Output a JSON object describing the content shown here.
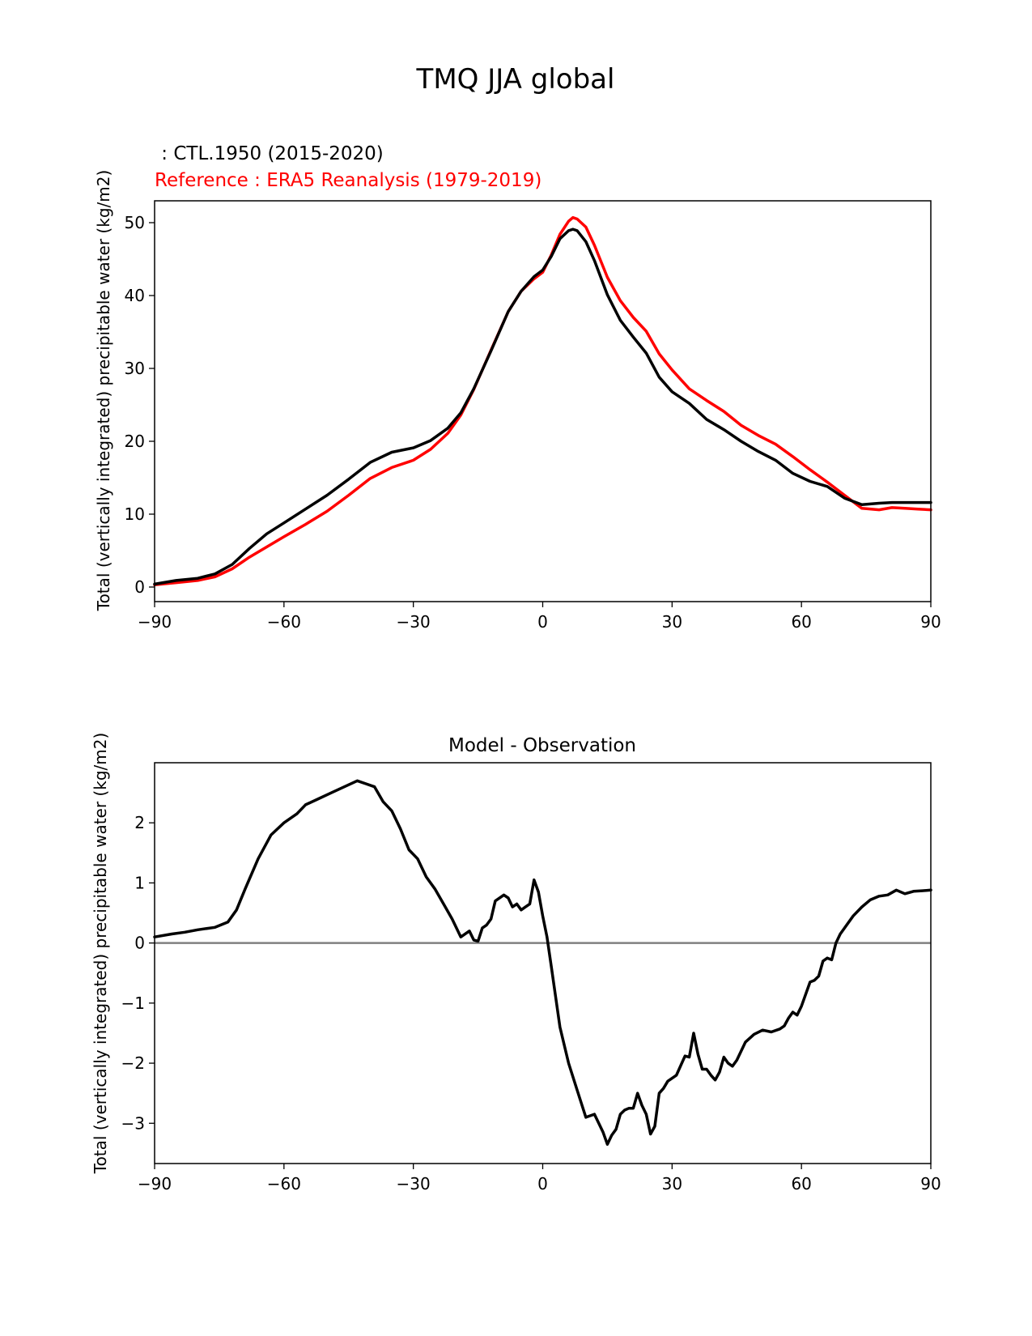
{
  "figure": {
    "suptitle": "TMQ JJA global"
  },
  "colors": {
    "test": "#000000",
    "reference": "#ff0000",
    "zero_line": "#808080"
  },
  "chart_data": [
    {
      "type": "line",
      "test_label": " : CTL.1950 (2015-2020)",
      "reference_label": "Reference : ERA5 Reanalysis (1979-2019)",
      "ylabel": "Total (vertically integrated) precipitable water (kg/m2)",
      "xlim": [
        -90,
        90
      ],
      "ylim": [
        -2,
        53
      ],
      "xticks": [
        -90,
        -60,
        -30,
        0,
        30,
        60,
        90
      ],
      "xtick_labels": [
        "−90",
        "−60",
        "−30",
        "0",
        "30",
        "60",
        "90"
      ],
      "yticks": [
        0,
        10,
        20,
        30,
        40,
        50
      ],
      "ytick_labels": [
        "0",
        "10",
        "20",
        "30",
        "40",
        "50"
      ],
      "x": [
        -90,
        -85,
        -80,
        -76,
        -72,
        -68,
        -64,
        -60,
        -55,
        -50,
        -45,
        -40,
        -35,
        -30,
        -26,
        -22,
        -19,
        -16,
        -12,
        -8,
        -5,
        -2,
        0,
        2,
        4,
        6,
        7,
        8,
        10,
        12,
        15,
        18,
        21,
        24,
        27,
        30,
        34,
        38,
        42,
        46,
        50,
        54,
        58,
        62,
        66,
        70,
        74,
        78,
        81,
        84,
        87,
        90
      ],
      "series": [
        {
          "name": "test",
          "values": [
            0.4,
            0.9,
            1.2,
            1.8,
            3.1,
            5.3,
            7.3,
            8.8,
            10.7,
            12.6,
            14.8,
            17.1,
            18.5,
            19.1,
            20.1,
            21.8,
            23.9,
            27.2,
            32.4,
            37.8,
            40.6,
            42.6,
            43.5,
            45.4,
            47.8,
            48.9,
            49.1,
            48.9,
            47.4,
            44.8,
            40.1,
            36.6,
            34.3,
            32.1,
            28.8,
            26.8,
            25.2,
            23.0,
            21.6,
            20.0,
            18.6,
            17.4,
            15.6,
            14.5,
            13.8,
            12.2,
            11.3,
            11.5,
            11.6,
            11.6,
            11.6,
            11.6
          ]
        },
        {
          "name": "reference",
          "values": [
            0.3,
            0.6,
            0.9,
            1.4,
            2.5,
            4.1,
            5.5,
            6.9,
            8.6,
            10.4,
            12.6,
            14.9,
            16.4,
            17.4,
            18.9,
            21.1,
            23.6,
            27.1,
            32.5,
            37.8,
            40.6,
            42.3,
            43.2,
            45.6,
            48.4,
            50.2,
            50.7,
            50.5,
            49.4,
            46.9,
            42.5,
            39.3,
            37.0,
            35.1,
            32.0,
            29.8,
            27.2,
            25.6,
            24.1,
            22.2,
            20.8,
            19.6,
            17.9,
            16.1,
            14.4,
            12.6,
            10.8,
            10.6,
            10.9,
            10.8,
            10.7,
            10.6
          ]
        }
      ]
    },
    {
      "type": "line",
      "title": "Model - Observation",
      "ylabel": "Total (vertically integrated) precipitable water (kg/m2)",
      "xlim": [
        -90,
        90
      ],
      "ylim": [
        -3.67,
        3.0
      ],
      "xticks": [
        -90,
        -60,
        -30,
        0,
        30,
        60,
        90
      ],
      "xtick_labels": [
        "−90",
        "−60",
        "−30",
        "0",
        "30",
        "60",
        "90"
      ],
      "yticks": [
        -3,
        -2,
        -1,
        0,
        1,
        2
      ],
      "ytick_labels": [
        "−3",
        "−2",
        "−1",
        "0",
        "1",
        "2"
      ],
      "x": [
        -90,
        -86,
        -83,
        -80,
        -76,
        -73,
        -71,
        -69,
        -66,
        -63,
        -60,
        -57,
        -55,
        -52,
        -49,
        -46,
        -43,
        -41,
        -39,
        -37,
        -35,
        -33,
        -31,
        -29,
        -27,
        -25,
        -23,
        -21,
        -19,
        -17,
        -16,
        -15,
        -14,
        -13,
        -12,
        -11,
        -9,
        -8,
        -7,
        -6,
        -5,
        -4,
        -3,
        -2,
        -1,
        0,
        1,
        2,
        3,
        4,
        6,
        8,
        10,
        12,
        14,
        15,
        16,
        17,
        18,
        19,
        20,
        21,
        22,
        23,
        24,
        25,
        26,
        27,
        28,
        29,
        31,
        33,
        34,
        35,
        36,
        37,
        38,
        39,
        40,
        41,
        42,
        43,
        44,
        45,
        47,
        49,
        51,
        53,
        55,
        56,
        57,
        58,
        59,
        60,
        61,
        62,
        63,
        64,
        65,
        66,
        67,
        68,
        69,
        70,
        72,
        74,
        76,
        78,
        80,
        82,
        84,
        86,
        88,
        90
      ],
      "series": [
        {
          "name": "difference",
          "values": [
            0.1,
            0.15,
            0.18,
            0.22,
            0.26,
            0.35,
            0.55,
            0.9,
            1.4,
            1.8,
            2.0,
            2.15,
            2.3,
            2.4,
            2.5,
            2.6,
            2.7,
            2.65,
            2.6,
            2.35,
            2.2,
            1.9,
            1.55,
            1.4,
            1.1,
            0.9,
            0.65,
            0.4,
            0.1,
            0.2,
            0.05,
            0.03,
            0.25,
            0.3,
            0.4,
            0.7,
            0.8,
            0.75,
            0.6,
            0.65,
            0.55,
            0.6,
            0.65,
            1.05,
            0.85,
            0.45,
            0.1,
            -0.4,
            -0.9,
            -1.4,
            -2.0,
            -2.45,
            -2.9,
            -2.85,
            -3.15,
            -3.35,
            -3.2,
            -3.1,
            -2.85,
            -2.78,
            -2.75,
            -2.75,
            -2.5,
            -2.7,
            -2.85,
            -3.18,
            -3.05,
            -2.5,
            -2.42,
            -2.3,
            -2.2,
            -1.88,
            -1.9,
            -1.5,
            -1.85,
            -2.1,
            -2.1,
            -2.2,
            -2.28,
            -2.15,
            -1.9,
            -2.0,
            -2.05,
            -1.95,
            -1.65,
            -1.52,
            -1.45,
            -1.48,
            -1.43,
            -1.38,
            -1.25,
            -1.15,
            -1.2,
            -1.05,
            -0.85,
            -0.65,
            -0.62,
            -0.55,
            -0.3,
            -0.25,
            -0.28,
            0.0,
            0.15,
            0.25,
            0.45,
            0.6,
            0.72,
            0.78,
            0.8,
            0.88,
            0.82,
            0.86,
            0.87,
            0.88
          ]
        }
      ],
      "reference_line": 0
    }
  ]
}
